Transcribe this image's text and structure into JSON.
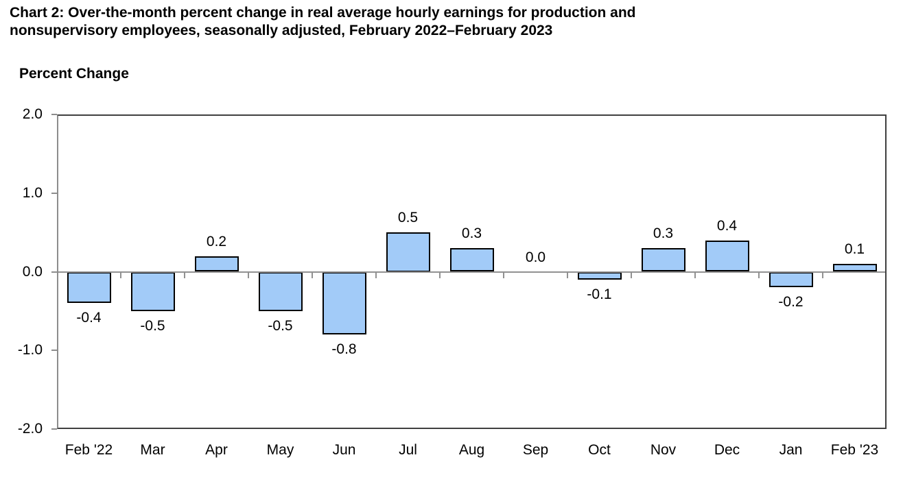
{
  "header": {
    "title_lines": [
      "Chart 2: Over-the-month percent change in real average hourly earnings for production and",
      "nonsupervisory employees, seasonally adjusted, February 2022–February 2023"
    ],
    "axis_title": "Percent Change"
  },
  "colors": {
    "bar_fill": "#a2cbf8",
    "bar_border": "#000000",
    "zero_line": "#919191",
    "plot_border": "#3f3f3f",
    "y_axis_line": "#8c8c8c",
    "text": "#000000",
    "background": "#ffffff"
  },
  "chart_data": {
    "type": "bar",
    "title": "Chart 2: Over-the-month percent change in real average hourly earnings for production and nonsupervisory employees, seasonally adjusted, February 2022–February 2023",
    "ylabel": "Percent Change",
    "xlabel": "",
    "categories": [
      "Feb '22",
      "Mar",
      "Apr",
      "May",
      "Jun",
      "Jul",
      "Aug",
      "Sep",
      "Oct",
      "Nov",
      "Dec",
      "Jan",
      "Feb '23"
    ],
    "values": [
      -0.4,
      -0.5,
      0.2,
      -0.5,
      -0.8,
      0.5,
      0.3,
      0.0,
      -0.1,
      0.3,
      0.4,
      -0.2,
      0.1
    ],
    "data_labels": [
      "-0.4",
      "-0.5",
      "0.2",
      "-0.5",
      "-0.8",
      "0.5",
      "0.3",
      "0.0",
      "-0.1",
      "0.3",
      "0.4",
      "-0.2",
      "0.1"
    ],
    "ylim": [
      -2.0,
      2.0
    ],
    "yticks": [
      2.0,
      1.0,
      0.0,
      -1.0,
      -2.0
    ],
    "ytick_labels": [
      "2.0",
      "1.0",
      "0.0",
      "-1.0",
      "-2.0"
    ],
    "grid": false,
    "legend": "none"
  }
}
